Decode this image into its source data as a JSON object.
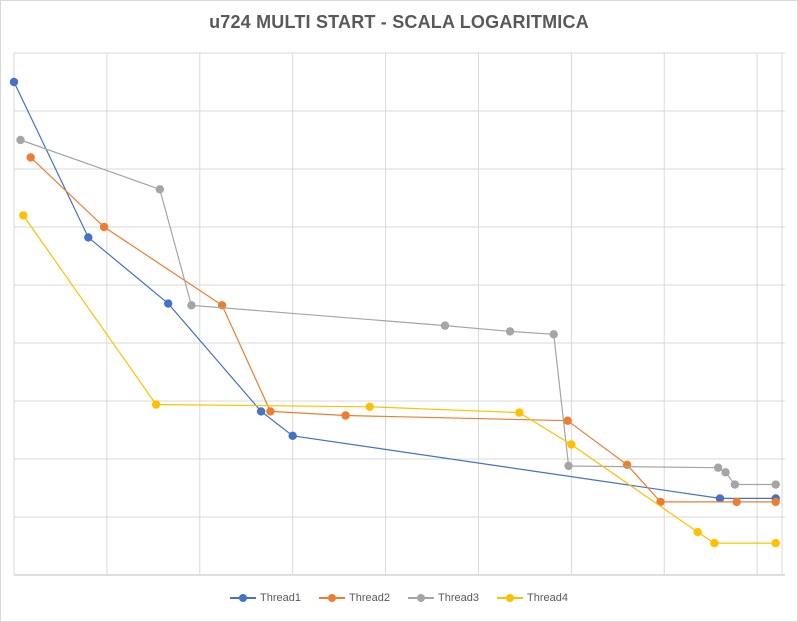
{
  "chart_data": {
    "type": "line",
    "title": "u724 MULTI START - SCALA LOGARITMICA",
    "xlabel": "",
    "ylabel": "",
    "xlim": [
      0,
      8.3
    ],
    "ylim": [
      0,
      9
    ],
    "grid": true,
    "legend_position": "bottom",
    "series": [
      {
        "name": "Thread1",
        "color": "#4472c4",
        "x": [
          0,
          0.8,
          1.66,
          2.66,
          3.0,
          7.6,
          8.2
        ],
        "y": [
          8.5,
          5.82,
          4.68,
          2.82,
          2.4,
          1.32,
          1.32
        ]
      },
      {
        "name": "Thread2",
        "color": "#ed7d31",
        "x": [
          0.18,
          0.97,
          2.24,
          2.76,
          3.57,
          5.96,
          6.6,
          6.96,
          7.78,
          8.2
        ],
        "y": [
          7.2,
          6.0,
          4.65,
          2.82,
          2.75,
          2.66,
          1.9,
          1.26,
          1.26,
          1.26
        ]
      },
      {
        "name": "Thread3",
        "color": "#a5a5a5",
        "x": [
          0.07,
          1.57,
          1.91,
          4.64,
          5.34,
          5.81,
          5.97,
          7.58,
          7.66,
          7.76,
          8.2
        ],
        "y": [
          7.5,
          6.65,
          4.65,
          4.3,
          4.2,
          4.15,
          1.88,
          1.85,
          1.77,
          1.56,
          1.56
        ]
      },
      {
        "name": "Thread4",
        "color": "#ffc000",
        "x": [
          0.1,
          1.53,
          3.83,
          5.44,
          6.0,
          7.36,
          7.54,
          8.2
        ],
        "y": [
          6.2,
          2.94,
          2.9,
          2.8,
          2.25,
          0.74,
          0.55,
          0.55
        ]
      }
    ]
  }
}
